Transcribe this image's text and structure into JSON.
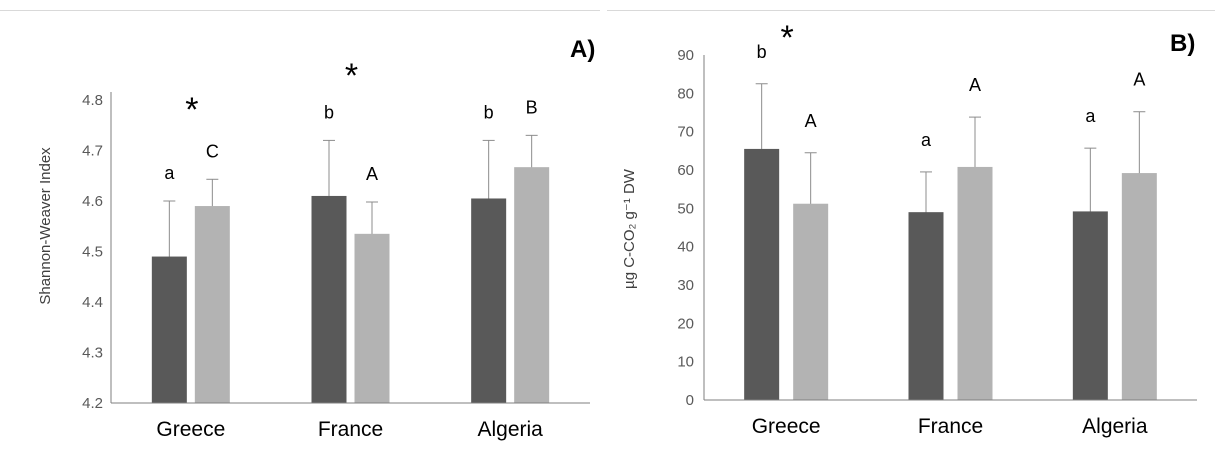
{
  "colors": {
    "dark_bar": "#595959",
    "light_bar": "#b3b3b3",
    "error_bar": "#8c8c8c",
    "axis": "#7f7f7f"
  },
  "chart_data": [
    {
      "type": "bar",
      "panel_label": "A)",
      "ylabel": "Shannon-Weaver Index",
      "ylim": [
        4.2,
        4.8
      ],
      "yticks": [
        "4.2",
        "4.3",
        "4.4",
        "4.5",
        "4.6",
        "4.7",
        "4.8"
      ],
      "categories": [
        "Greece",
        "France",
        "Algeria"
      ],
      "series": [
        {
          "color": "#595959",
          "values": [
            4.49,
            4.61,
            4.605
          ],
          "errors": [
            0.11,
            0.11,
            0.115
          ],
          "letters": [
            "a",
            "b",
            "b"
          ]
        },
        {
          "color": "#b3b3b3",
          "values": [
            4.59,
            4.535,
            4.667
          ],
          "errors": [
            0.053,
            0.063,
            0.063
          ],
          "letters": [
            "C",
            "A",
            "B"
          ]
        }
      ],
      "significance_marks": [
        "*",
        "*",
        ""
      ]
    },
    {
      "type": "bar",
      "panel_label": "B)",
      "ylabel": "µg C-CO₂ g⁻¹ DW",
      "ylim": [
        0,
        90
      ],
      "yticks": [
        "0",
        "10",
        "20",
        "30",
        "40",
        "50",
        "60",
        "70",
        "80",
        "90"
      ],
      "categories": [
        "Greece",
        "France",
        "Algeria"
      ],
      "series": [
        {
          "color": "#595959",
          "values": [
            65.5,
            49,
            49.2
          ],
          "errors": [
            17,
            10.5,
            16.5
          ],
          "letters": [
            "b",
            "a",
            "a"
          ]
        },
        {
          "color": "#b3b3b3",
          "values": [
            51.2,
            60.8,
            59.2
          ],
          "errors": [
            13.3,
            13,
            16
          ],
          "letters": [
            "A",
            "A",
            "A"
          ]
        }
      ],
      "significance_marks": [
        "*",
        "",
        ""
      ]
    }
  ]
}
